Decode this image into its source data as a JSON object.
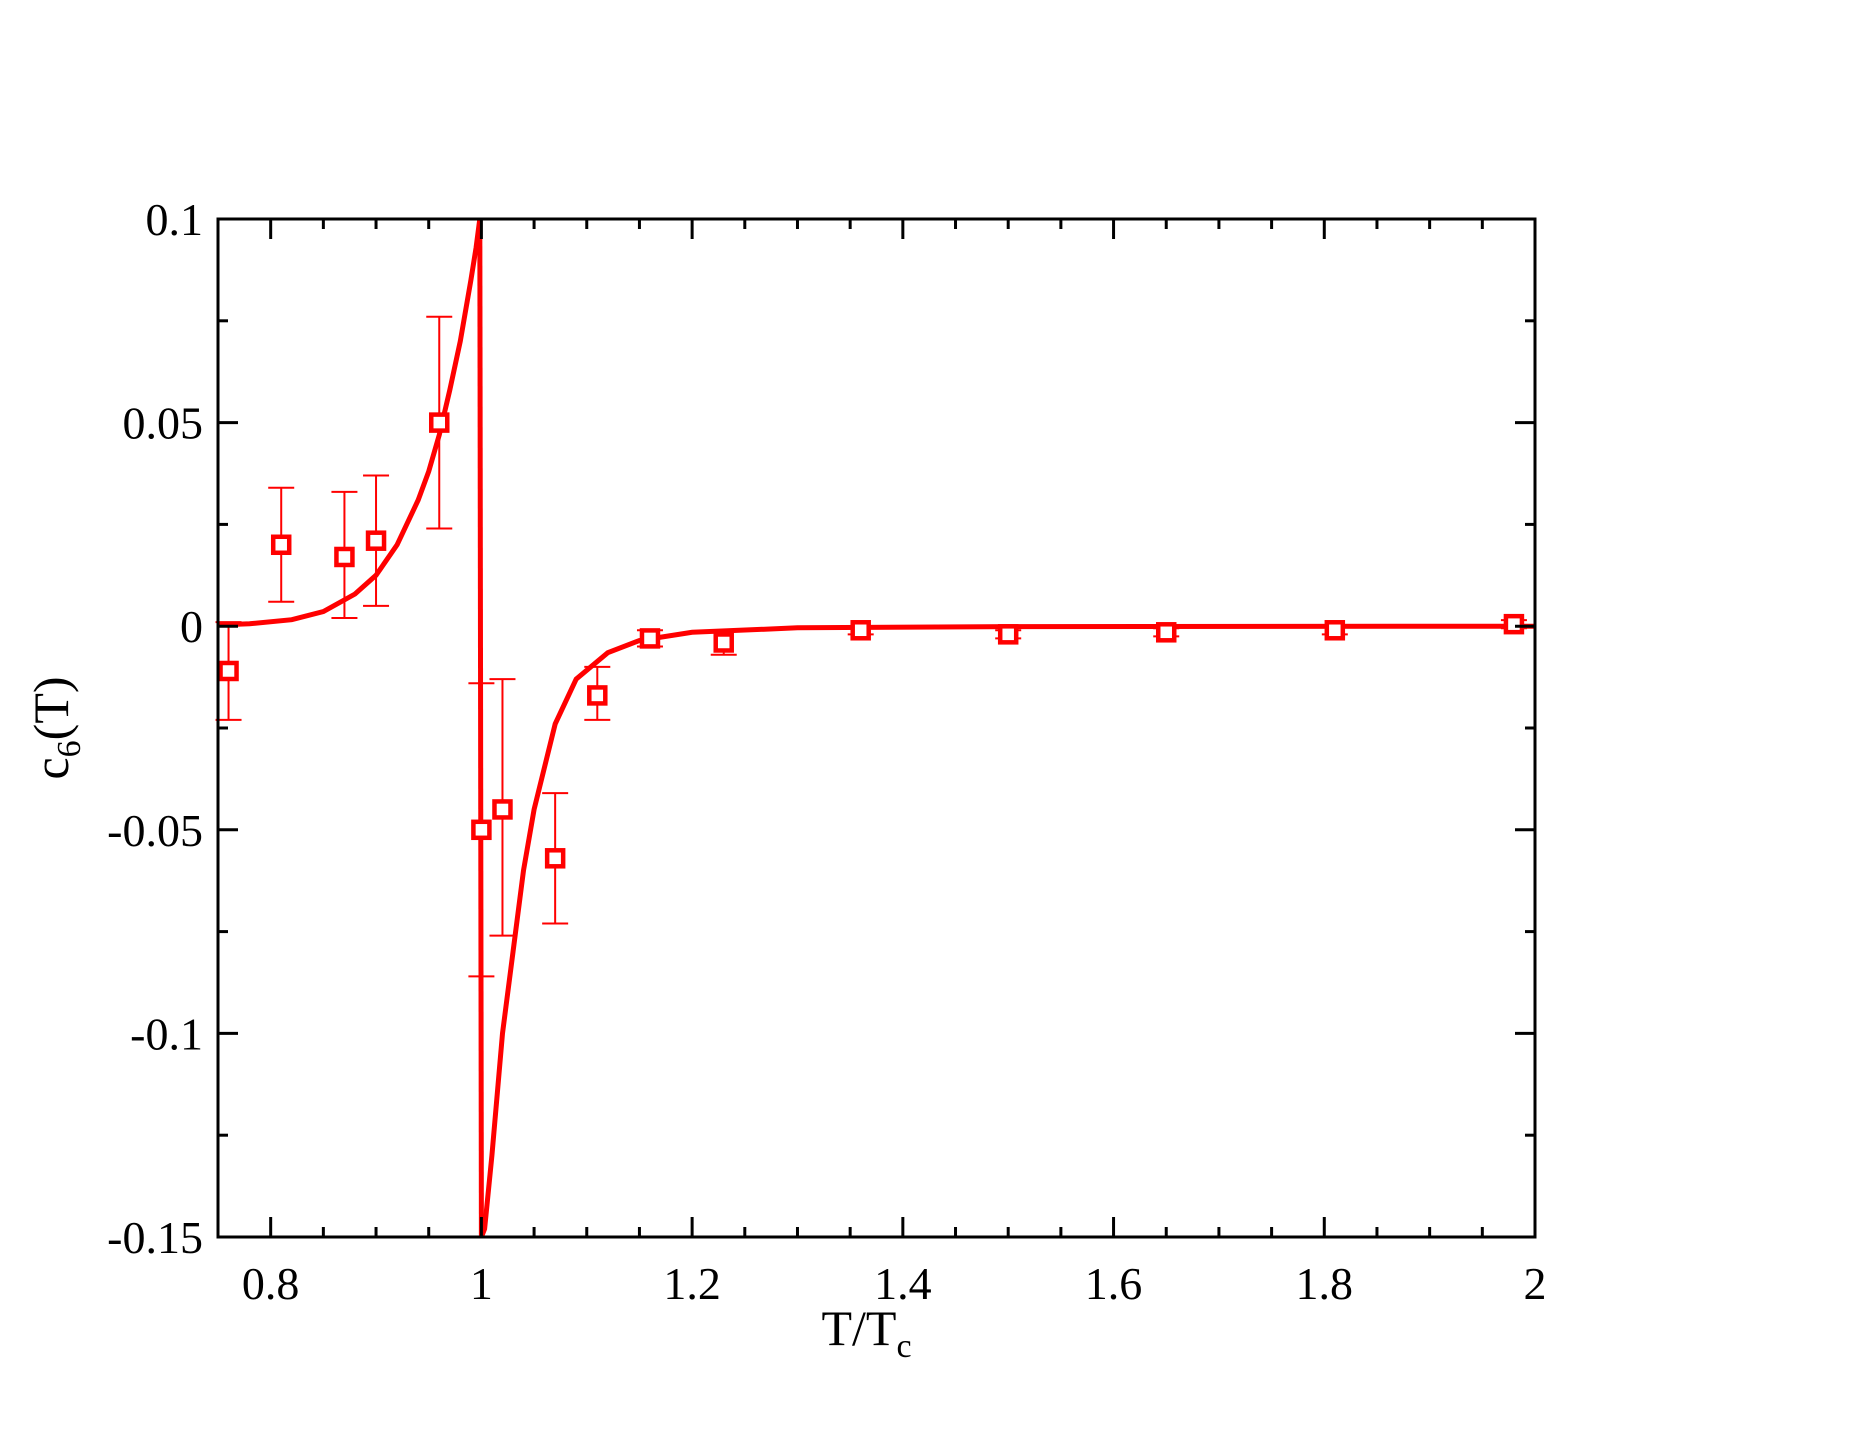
{
  "chart_data": {
    "type": "scatter",
    "xlabel": "T/T",
    "xlabel_sub": "c",
    "ylabel": "c",
    "ylabel_sub": "6",
    "ylabel_suffix": "(T)",
    "xlim": [
      0.75,
      2.0
    ],
    "ylim": [
      -0.15,
      0.1
    ],
    "xticks": [
      0.8,
      1,
      1.2,
      1.4,
      1.6,
      1.8,
      2
    ],
    "xtick_labels": [
      "0.8",
      "1",
      "1.2",
      "1.4",
      "1.6",
      "1.8",
      "2"
    ],
    "yticks": [
      -0.15,
      -0.1,
      -0.05,
      0,
      0.05,
      0.1
    ],
    "ytick_labels": [
      "-0.15",
      "-0.1",
      "-0.05",
      "0",
      "0.05",
      "0.1"
    ],
    "grid": false,
    "color": "#ff0000",
    "points": [
      {
        "x": 0.76,
        "y": -0.011,
        "err_low": -0.023,
        "err_high": 0.001
      },
      {
        "x": 0.81,
        "y": 0.02,
        "err_low": 0.006,
        "err_high": 0.034
      },
      {
        "x": 0.87,
        "y": 0.017,
        "err_low": 0.002,
        "err_high": 0.033
      },
      {
        "x": 0.9,
        "y": 0.021,
        "err_low": 0.005,
        "err_high": 0.037
      },
      {
        "x": 0.96,
        "y": 0.05,
        "err_low": 0.024,
        "err_high": 0.076
      },
      {
        "x": 1.0,
        "y": -0.05,
        "err_low": -0.086,
        "err_high": -0.014
      },
      {
        "x": 1.02,
        "y": -0.045,
        "err_low": -0.076,
        "err_high": -0.013
      },
      {
        "x": 1.07,
        "y": -0.057,
        "err_low": -0.073,
        "err_high": -0.041
      },
      {
        "x": 1.11,
        "y": -0.017,
        "err_low": -0.023,
        "err_high": -0.01
      },
      {
        "x": 1.16,
        "y": -0.003,
        "err_low": -0.005,
        "err_high": -0.001
      },
      {
        "x": 1.23,
        "y": -0.004,
        "err_low": -0.007,
        "err_high": -0.001
      },
      {
        "x": 1.36,
        "y": -0.001,
        "err_low": -0.002,
        "err_high": 0.0
      },
      {
        "x": 1.5,
        "y": -0.002,
        "err_low": -0.003,
        "err_high": -0.001
      },
      {
        "x": 1.65,
        "y": -0.0015,
        "err_low": -0.0025,
        "err_high": -0.0005
      },
      {
        "x": 1.81,
        "y": -0.001,
        "err_low": -0.002,
        "err_high": 0.0
      },
      {
        "x": 1.98,
        "y": 0.0005,
        "err_low": -0.0005,
        "err_high": 0.0015
      }
    ],
    "curve": {
      "left_branch": [
        [
          0.75,
          0.0003
        ],
        [
          0.78,
          0.0006
        ],
        [
          0.82,
          0.0016
        ],
        [
          0.85,
          0.0036
        ],
        [
          0.88,
          0.0079
        ],
        [
          0.9,
          0.0125
        ],
        [
          0.92,
          0.02
        ],
        [
          0.94,
          0.031
        ],
        [
          0.95,
          0.038
        ],
        [
          0.96,
          0.047
        ],
        [
          0.97,
          0.058
        ],
        [
          0.98,
          0.07
        ],
        [
          0.99,
          0.085
        ],
        [
          0.995,
          0.093
        ],
        [
          0.9985,
          0.1
        ]
      ],
      "right_branch": [
        [
          1.0,
          -0.15
        ],
        [
          1.003,
          -0.148
        ],
        [
          1.01,
          -0.13
        ],
        [
          1.02,
          -0.1
        ],
        [
          1.03,
          -0.08
        ],
        [
          1.04,
          -0.06
        ],
        [
          1.05,
          -0.045
        ],
        [
          1.07,
          -0.024
        ],
        [
          1.09,
          -0.013
        ],
        [
          1.12,
          -0.0065
        ],
        [
          1.15,
          -0.0035
        ],
        [
          1.2,
          -0.0015
        ],
        [
          1.3,
          -0.0004
        ],
        [
          1.5,
          -0.0001
        ],
        [
          2.0,
          0.0
        ]
      ]
    }
  }
}
